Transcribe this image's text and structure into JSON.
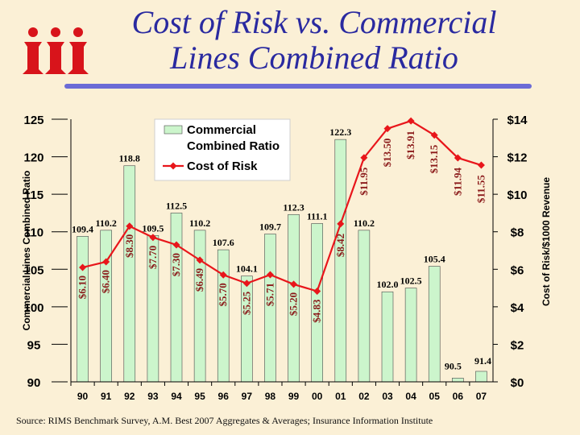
{
  "slide": {
    "title_line1": "Cost of Risk vs. Commercial",
    "title_line2": "Lines Combined Ratio",
    "source": "Source: RIMS Benchmark Survey, A.M. Best 2007 Aggregates & Averages; Insurance Information Institute",
    "logo_icon": "iii-logo-icon"
  },
  "chart_data": {
    "type": "bar",
    "categories": [
      "90",
      "91",
      "92",
      "93",
      "94",
      "95",
      "96",
      "97",
      "98",
      "99",
      "00",
      "01",
      "02",
      "03",
      "04",
      "05",
      "06",
      "07"
    ],
    "series": [
      {
        "name": "Commercial Combined Ratio",
        "type": "bar",
        "axis": "left",
        "values": [
          109.4,
          110.2,
          118.8,
          109.5,
          112.5,
          110.2,
          107.6,
          104.1,
          109.7,
          112.3,
          111.1,
          122.3,
          110.2,
          102.0,
          102.5,
          105.4,
          90.5,
          91.4
        ],
        "labels": [
          "109.4",
          "110.2",
          "118.8",
          "109.5",
          "112.5",
          "110.2",
          "107.6",
          "104.1",
          "109.7",
          "112.3",
          "111.1",
          "122.3",
          "110.2",
          "102.0",
          "102.5",
          "105.4",
          "90.5",
          "91.4"
        ],
        "color": "#ccf5cc"
      },
      {
        "name": "Cost of Risk",
        "type": "line",
        "axis": "right",
        "values": [
          6.1,
          6.4,
          8.3,
          7.7,
          7.3,
          6.49,
          5.7,
          5.25,
          5.71,
          5.2,
          4.83,
          8.42,
          11.95,
          13.5,
          13.91,
          13.15,
          11.94,
          11.55
        ],
        "labels": [
          "$6.10",
          "$6.40",
          "$8.30",
          "$7.70",
          "$7.30",
          "$6.49",
          "$5.70",
          "$5.25",
          "$5.71",
          "$5.20",
          "$4.83",
          "$8.42",
          "$11.95",
          "$13.50",
          "$13.91",
          "$13.15",
          "$11.94",
          "$11.55"
        ],
        "color": "#e8161b"
      }
    ],
    "y_left": {
      "label": "Commercial Lines Combined Ratio",
      "ylim": [
        90,
        125
      ],
      "ticks": [
        "90",
        "95",
        "100",
        "105",
        "110",
        "115",
        "120",
        "125"
      ]
    },
    "y_right": {
      "label": "Cost of Risk/$1000 Revenue",
      "ylim": [
        0,
        14
      ],
      "ticks": [
        "$0",
        "$2",
        "$4",
        "$6",
        "$8",
        "$10",
        "$12",
        "$14"
      ]
    },
    "legend": {
      "position": "top-center",
      "entries": [
        "Commercial Combined Ratio",
        "Cost of Risk"
      ]
    },
    "grid": false
  }
}
